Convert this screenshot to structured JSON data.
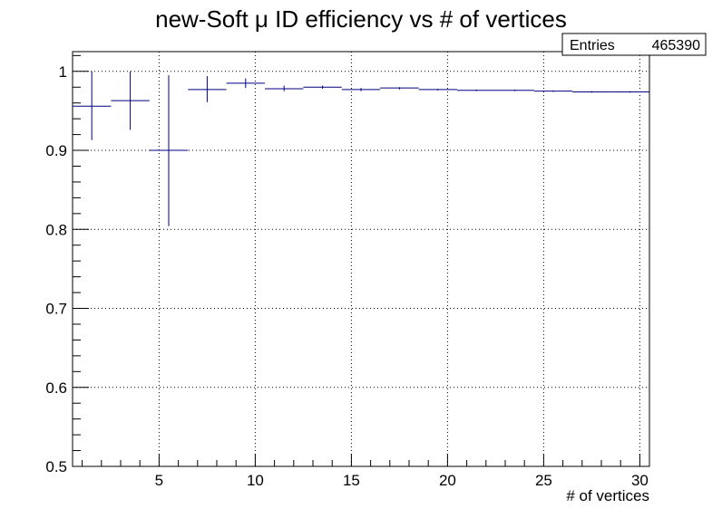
{
  "chart_data": {
    "type": "scatter",
    "title": "new-Soft μ ID efficiency vs # of vertices",
    "xlabel": "# of vertices",
    "ylabel": "",
    "xlim": [
      0.5,
      30.5
    ],
    "ylim": [
      0.5,
      1.025
    ],
    "x_ticks": [
      5,
      10,
      15,
      20,
      25,
      30
    ],
    "y_ticks": [
      0.5,
      0.6,
      0.7,
      0.8,
      0.9,
      1
    ],
    "y_tick_labels": [
      "0.5",
      "0.6",
      "0.7",
      "0.8",
      "0.9",
      "1"
    ],
    "grid": true,
    "stats_box": {
      "label": "Entries",
      "value": "465390",
      "position": "top-right"
    },
    "series": [
      {
        "color": "#000080",
        "points": [
          {
            "x": 1.5,
            "xlow": 0.5,
            "xhigh": 2.5,
            "y": 0.956,
            "ylow": 0.913,
            "yhigh": 1.0
          },
          {
            "x": 3.5,
            "xlow": 2.5,
            "xhigh": 4.5,
            "y": 0.963,
            "ylow": 0.926,
            "yhigh": 1.0
          },
          {
            "x": 5.5,
            "xlow": 4.5,
            "xhigh": 6.5,
            "y": 0.9,
            "ylow": 0.804,
            "yhigh": 0.995
          },
          {
            "x": 7.5,
            "xlow": 6.5,
            "xhigh": 8.5,
            "y": 0.977,
            "ylow": 0.961,
            "yhigh": 0.994
          },
          {
            "x": 9.5,
            "xlow": 8.5,
            "xhigh": 10.5,
            "y": 0.985,
            "ylow": 0.979,
            "yhigh": 0.991
          },
          {
            "x": 11.5,
            "xlow": 10.5,
            "xhigh": 12.5,
            "y": 0.978,
            "ylow": 0.975,
            "yhigh": 0.982
          },
          {
            "x": 13.5,
            "xlow": 12.5,
            "xhigh": 14.5,
            "y": 0.98,
            "ylow": 0.978,
            "yhigh": 0.982
          },
          {
            "x": 15.5,
            "xlow": 14.5,
            "xhigh": 16.5,
            "y": 0.977,
            "ylow": 0.975,
            "yhigh": 0.979
          },
          {
            "x": 17.5,
            "xlow": 16.5,
            "xhigh": 18.5,
            "y": 0.979,
            "ylow": 0.977,
            "yhigh": 0.98
          },
          {
            "x": 19.5,
            "xlow": 18.5,
            "xhigh": 20.5,
            "y": 0.977,
            "ylow": 0.976,
            "yhigh": 0.978
          },
          {
            "x": 21.5,
            "xlow": 20.5,
            "xhigh": 22.5,
            "y": 0.976,
            "ylow": 0.975,
            "yhigh": 0.977
          },
          {
            "x": 23.5,
            "xlow": 22.5,
            "xhigh": 24.5,
            "y": 0.976,
            "ylow": 0.975,
            "yhigh": 0.977
          },
          {
            "x": 25.5,
            "xlow": 24.5,
            "xhigh": 26.5,
            "y": 0.975,
            "ylow": 0.974,
            "yhigh": 0.976
          },
          {
            "x": 27.5,
            "xlow": 26.5,
            "xhigh": 28.5,
            "y": 0.974,
            "ylow": 0.973,
            "yhigh": 0.975
          },
          {
            "x": 29.5,
            "xlow": 28.5,
            "xhigh": 30.5,
            "y": 0.974,
            "ylow": 0.973,
            "yhigh": 0.975
          }
        ]
      }
    ]
  }
}
